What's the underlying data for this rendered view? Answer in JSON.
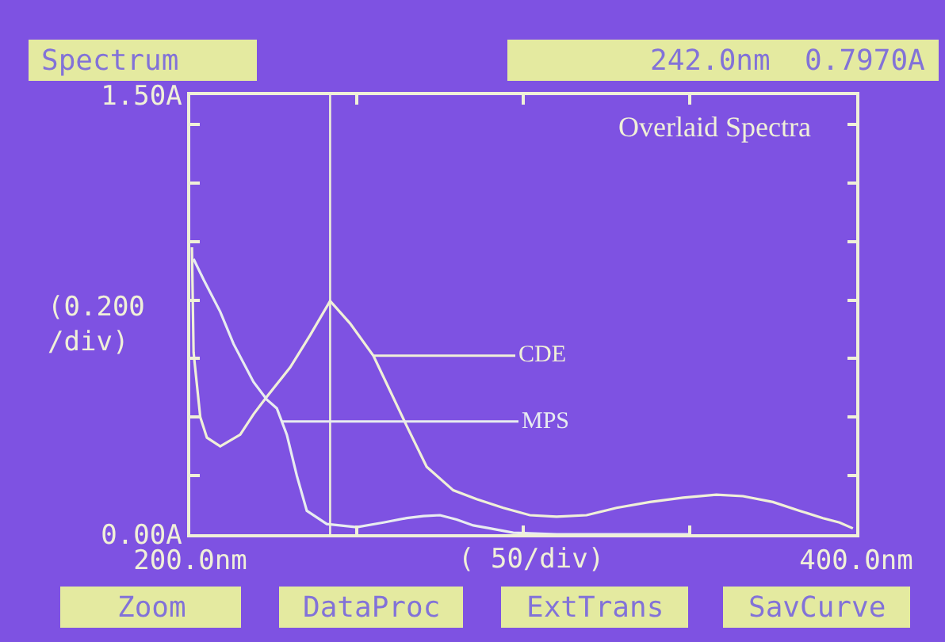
{
  "chart_data": {
    "type": "line",
    "title": "Overlaid Spectra",
    "xlabel": "( 50/div)",
    "ylabel": "(0.200 /div)",
    "xlim": [
      200,
      400
    ],
    "ylim": [
      0,
      1.5
    ],
    "xticks": [
      {
        "value": 200,
        "label": "200.0nm"
      },
      {
        "value": 250,
        "label": null
      },
      {
        "value": 300,
        "label": null
      },
      {
        "value": 350,
        "label": null
      },
      {
        "value": 400,
        "label": "400.0nm"
      }
    ],
    "yticks": [
      {
        "value": 0,
        "label": "0.00A"
      },
      {
        "value": 0.2,
        "label": null
      },
      {
        "value": 0.4,
        "label": null
      },
      {
        "value": 0.6,
        "label": null
      },
      {
        "value": 0.8,
        "label": null
      },
      {
        "value": 1.0,
        "label": null
      },
      {
        "value": 1.2,
        "label": null
      },
      {
        "value": 1.4,
        "label": null
      },
      {
        "value": 1.5,
        "label": "1.50A"
      }
    ],
    "series": [
      {
        "name": "CDE",
        "color": "#f0f0d8",
        "x": [
          200.5,
          201,
          203,
          205,
          209,
          215,
          219,
          223,
          230,
          236,
          242,
          248,
          255,
          260,
          265,
          271,
          279,
          286,
          294,
          302,
          310,
          319,
          328,
          338,
          348,
          358,
          366,
          375,
          383,
          390,
          395,
          399
        ],
        "values": [
          0.98,
          0.62,
          0.4,
          0.33,
          0.3,
          0.34,
          0.41,
          0.47,
          0.57,
          0.68,
          0.797,
          0.72,
          0.61,
          0.49,
          0.37,
          0.23,
          0.15,
          0.12,
          0.09,
          0.065,
          0.06,
          0.065,
          0.09,
          0.11,
          0.125,
          0.135,
          0.13,
          0.11,
          0.08,
          0.055,
          0.04,
          0.02
        ]
      },
      {
        "name": "MPS",
        "color": "#e8ecf0",
        "x": [
          201,
          204,
          209,
          213,
          219,
          223,
          226,
          229,
          232,
          235,
          241,
          250,
          258,
          265,
          270,
          275,
          280,
          285,
          290,
          297,
          310,
          330,
          350
        ],
        "values": [
          0.94,
          0.87,
          0.76,
          0.65,
          0.52,
          0.46,
          0.43,
          0.34,
          0.2,
          0.08,
          0.035,
          0.024,
          0.04,
          0.055,
          0.062,
          0.065,
          0.05,
          0.03,
          0.02,
          0.005,
          0.0,
          0.0,
          0.0
        ]
      }
    ],
    "ref_lines": [
      {
        "axis": "x",
        "value": 242,
        "color": "#f0f0d8"
      }
    ],
    "annotations": [
      "Spectrum",
      "242.0nm  0.7970A",
      "Zoom",
      "DataProc",
      "ExtTrans",
      "SavCurve"
    ],
    "grid": false,
    "legend": false,
    "marker": "none",
    "line_style": "solid"
  }
}
